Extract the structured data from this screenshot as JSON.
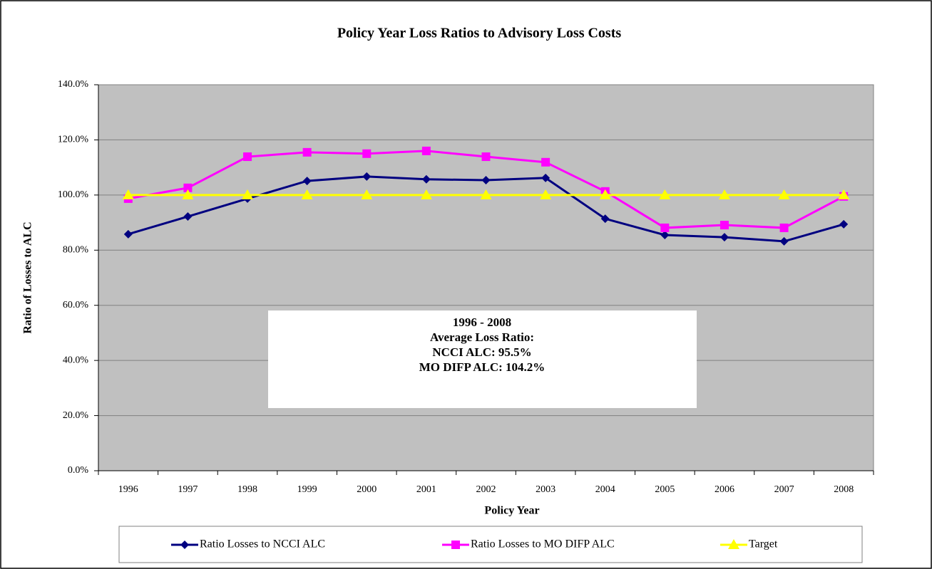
{
  "chart_data": {
    "type": "line",
    "title": "Policy Year Loss Ratios to Advisory Loss Costs",
    "x_label": "Policy Year",
    "y_label": "Ratio of Losses to ALC",
    "categories": [
      "1996",
      "1997",
      "1998",
      "1999",
      "2000",
      "2001",
      "2002",
      "2003",
      "2004",
      "2005",
      "2006",
      "2007",
      "2008"
    ],
    "series": [
      {
        "name": "Ratio Losses to NCCI ALC",
        "color": "#000080",
        "marker": "diamond",
        "values": [
          85.8,
          92.2,
          98.7,
          105.1,
          106.7,
          105.7,
          105.4,
          106.2,
          91.4,
          85.5,
          84.7,
          83.2,
          89.4
        ]
      },
      {
        "name": "Ratio Losses to MO DIFP ALC",
        "color": "#FF00FF",
        "marker": "square",
        "values": [
          98.7,
          102.6,
          113.9,
          115.5,
          115.0,
          116.0,
          113.9,
          111.9,
          101.3,
          88.1,
          89.1,
          88.1,
          99.5
        ]
      },
      {
        "name": "Target",
        "color": "#FFFF00",
        "marker": "triangle",
        "values": [
          100,
          100,
          100,
          100,
          100,
          100,
          100,
          100,
          100,
          100,
          100,
          100,
          100
        ]
      }
    ],
    "ylim": [
      0,
      140
    ],
    "yticks": [
      {
        "value": 0,
        "label": "0.0%"
      },
      {
        "value": 20,
        "label": "20.0%"
      },
      {
        "value": 40,
        "label": "40.0%"
      },
      {
        "value": 60,
        "label": "60.0%"
      },
      {
        "value": 80,
        "label": "80.0%"
      },
      {
        "value": 100,
        "label": "100.0%"
      },
      {
        "value": 120,
        "label": "120.0%"
      },
      {
        "value": 140,
        "label": "140.0%"
      }
    ],
    "grid": true,
    "plot_background": "#C0C0C0",
    "legend": "bottom",
    "annotation": {
      "lines": [
        "1996 - 2008",
        "Average Loss Ratio:",
        "NCCI ALC:  95.5%",
        "MO DIFP ALC:  104.2%"
      ],
      "colors": [
        "#000000",
        "#000000",
        "#000080",
        "#FF00FF"
      ]
    }
  }
}
